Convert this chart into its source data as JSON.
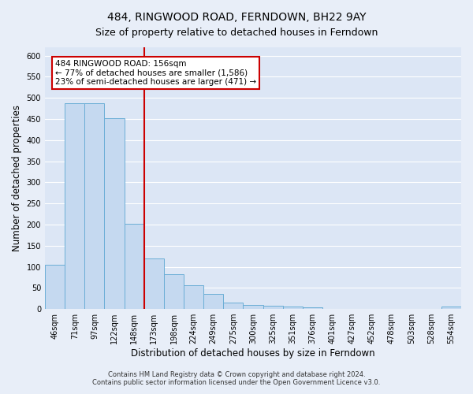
{
  "title": "484, RINGWOOD ROAD, FERNDOWN, BH22 9AY",
  "subtitle": "Size of property relative to detached houses in Ferndown",
  "xlabel": "Distribution of detached houses by size in Ferndown",
  "ylabel": "Number of detached properties",
  "bin_labels": [
    "46sqm",
    "71sqm",
    "97sqm",
    "122sqm",
    "148sqm",
    "173sqm",
    "198sqm",
    "224sqm",
    "249sqm",
    "275sqm",
    "300sqm",
    "325sqm",
    "351sqm",
    "376sqm",
    "401sqm",
    "427sqm",
    "452sqm",
    "478sqm",
    "503sqm",
    "528sqm",
    "554sqm"
  ],
  "bar_heights": [
    105,
    487,
    487,
    452,
    201,
    120,
    82,
    56,
    35,
    16,
    10,
    7,
    5,
    3,
    0,
    0,
    0,
    0,
    0,
    0,
    5
  ],
  "bar_color": "#c5d9f0",
  "bar_edge_color": "#6baed6",
  "vline_x_index": 4,
  "vline_color": "#cc0000",
  "annotation_title": "484 RINGWOOD ROAD: 156sqm",
  "annotation_line1": "← 77% of detached houses are smaller (1,586)",
  "annotation_line2": "23% of semi-detached houses are larger (471) →",
  "annotation_box_color": "#ffffff",
  "annotation_box_edge": "#cc0000",
  "ylim": [
    0,
    620
  ],
  "yticks": [
    0,
    50,
    100,
    150,
    200,
    250,
    300,
    350,
    400,
    450,
    500,
    550,
    600
  ],
  "footer_line1": "Contains HM Land Registry data © Crown copyright and database right 2024.",
  "footer_line2": "Contains public sector information licensed under the Open Government Licence v3.0.",
  "bg_color": "#e8eef8",
  "plot_bg_color": "#dce6f5",
  "grid_color": "#ffffff",
  "title_fontsize": 10,
  "subtitle_fontsize": 9,
  "axis_label_fontsize": 8.5,
  "tick_fontsize": 7,
  "footer_fontsize": 6,
  "annotation_fontsize": 7.5
}
